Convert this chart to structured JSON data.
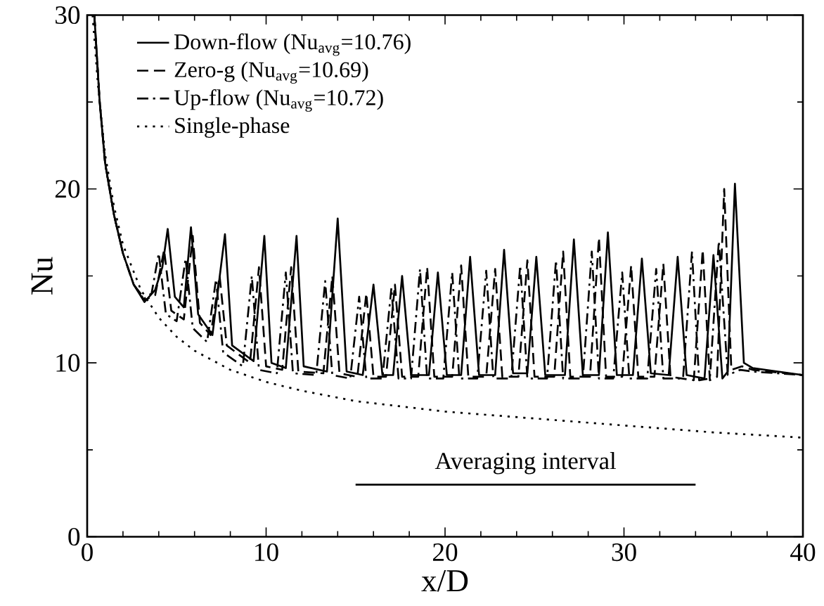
{
  "chart_data": {
    "type": "line",
    "xlabel": "x/D",
    "ylabel": "Nu",
    "xlim": [
      0,
      40
    ],
    "ylim": [
      0,
      30
    ],
    "xticks": [
      0,
      10,
      20,
      30,
      40
    ],
    "yticks": [
      0,
      10,
      20,
      30
    ],
    "legend": "top left",
    "marker": "none",
    "annotations": [
      {
        "text": "Averaging interval",
        "x": 24.5,
        "y": 3
      }
    ],
    "series": [
      {
        "name": "Down-flow  (Nu$_{avg}$=10.76)",
        "color": "#000000",
        "line_style": "solid",
        "x": [
          0.4,
          0.7,
          1,
          1.5,
          2,
          2.6,
          3.2,
          3.8,
          4.2,
          4.5,
          4.9,
          5.4,
          5.8,
          6.2,
          7.0,
          7.7,
          8.1,
          9.3,
          9.9,
          10.3,
          11.1,
          11.7,
          12.1,
          13.4,
          14.0,
          14.5,
          15.4,
          16.0,
          16.5,
          17.1,
          17.6,
          18.1,
          19.1,
          19.6,
          20.1,
          20.9,
          21.4,
          21.9,
          22.8,
          23.3,
          23.8,
          24.6,
          25.1,
          25.6,
          26.7,
          27.2,
          27.7,
          28.6,
          29.1,
          29.6,
          30.5,
          31.0,
          31.5,
          32.5,
          33.0,
          33.5,
          34.5,
          35.0,
          35.5,
          35.8,
          36.2,
          36.7,
          37.2,
          40
        ],
        "values": [
          30,
          25,
          21.5,
          18.5,
          16.3,
          14.5,
          13.5,
          14.2,
          15.5,
          17.7,
          13.8,
          13.2,
          17.8,
          12.8,
          11.6,
          17.4,
          11.0,
          10.1,
          17.3,
          10.0,
          9.7,
          17.3,
          9.8,
          9.5,
          18.3,
          9.5,
          9.3,
          14.5,
          9.3,
          9.3,
          15.0,
          9.3,
          9.3,
          15.2,
          9.3,
          9.3,
          16.1,
          9.3,
          9.3,
          16.5,
          9.4,
          9.4,
          16.1,
          9.3,
          9.3,
          17.1,
          9.3,
          9.3,
          17.5,
          9.3,
          9.3,
          16.0,
          9.4,
          9.3,
          16.1,
          9.3,
          9.1,
          16.2,
          9.1,
          9.5,
          20.3,
          10.0,
          9.7,
          9.3
        ]
      },
      {
        "name": "Zero-g       (Nu$_{avg}$=10.69)",
        "color": "#000000",
        "line_style": "dashed",
        "x": [
          0.4,
          0.7,
          1,
          1.5,
          2,
          2.6,
          3.2,
          3.8,
          4.3,
          4.7,
          5.4,
          5.9,
          6.3,
          6.9,
          7.4,
          7.8,
          9.1,
          9.6,
          10.0,
          10.9,
          11.4,
          11.8,
          13.2,
          13.7,
          14.1,
          15.1,
          15.6,
          16.0,
          16.7,
          17.2,
          17.6,
          18.5,
          19.0,
          19.4,
          20.4,
          20.9,
          21.3,
          22.3,
          22.8,
          23.2,
          24.1,
          24.6,
          25.0,
          26.1,
          26.6,
          27.0,
          28.1,
          28.6,
          29.0,
          29.9,
          30.4,
          30.8,
          31.7,
          32.2,
          32.6,
          33.9,
          34.4,
          34.8,
          35.2,
          35.6,
          36.0,
          36.6,
          37.2,
          40
        ],
        "values": [
          30,
          25,
          21.5,
          18.5,
          16.3,
          14.5,
          13.6,
          13.9,
          16.5,
          13.0,
          12.5,
          17.3,
          12.3,
          11.6,
          15.0,
          11.0,
          10.0,
          15.5,
          9.8,
          9.6,
          15.5,
          9.5,
          9.4,
          15.0,
          9.4,
          9.2,
          14.0,
          9.2,
          9.2,
          14.5,
          9.2,
          9.2,
          15.5,
          9.2,
          9.2,
          15.6,
          9.2,
          9.2,
          15.4,
          9.2,
          9.2,
          15.9,
          9.2,
          9.2,
          16.4,
          9.2,
          9.2,
          17.2,
          9.2,
          9.2,
          15.6,
          9.2,
          9.2,
          15.7,
          9.2,
          9.0,
          16.5,
          9.0,
          9.2,
          20.0,
          9.6,
          9.8,
          9.6,
          9.3
        ]
      },
      {
        "name": "Up-flow      (Nu$_{avg}$=10.72)",
        "color": "#000000",
        "line_style": "dashdot",
        "x": [
          0.4,
          0.7,
          1,
          1.5,
          2,
          2.6,
          3.2,
          3.6,
          4.0,
          4.4,
          5.0,
          5.5,
          5.9,
          6.7,
          7.2,
          7.6,
          8.7,
          9.2,
          9.6,
          10.6,
          11.1,
          11.5,
          12.8,
          13.3,
          13.7,
          14.7,
          15.2,
          15.6,
          16.5,
          17.0,
          17.4,
          18.1,
          18.6,
          19.0,
          19.9,
          20.4,
          20.8,
          21.8,
          22.3,
          22.7,
          23.7,
          24.2,
          24.6,
          25.7,
          26.2,
          26.6,
          27.7,
          28.2,
          28.6,
          29.4,
          29.9,
          30.3,
          31.3,
          31.8,
          32.2,
          33.3,
          33.8,
          34.2,
          34.8,
          35.3,
          35.8,
          36.5,
          37.2,
          40
        ],
        "values": [
          30,
          25,
          21.5,
          18.5,
          16.3,
          14.5,
          13.7,
          14.0,
          16.3,
          12.8,
          12.4,
          16.0,
          12.0,
          11.2,
          14.8,
          10.6,
          9.8,
          15.0,
          9.6,
          9.4,
          15.2,
          9.4,
          9.3,
          14.7,
          9.3,
          9.1,
          13.8,
          9.1,
          9.1,
          14.3,
          9.1,
          9.1,
          15.4,
          9.1,
          9.1,
          15.2,
          9.1,
          9.1,
          15.3,
          9.1,
          9.1,
          15.6,
          9.1,
          9.1,
          15.9,
          9.1,
          9.1,
          16.4,
          9.1,
          9.1,
          15.2,
          9.1,
          9.1,
          15.4,
          9.1,
          9.1,
          16.4,
          9.0,
          9.1,
          17.0,
          9.3,
          9.6,
          9.5,
          9.3
        ]
      },
      {
        "name": "Single-phase",
        "color": "#000000",
        "line_style": "dotted",
        "x": [
          0.3,
          0.6,
          1,
          1.5,
          2,
          3,
          4,
          5,
          6,
          8,
          10,
          12,
          15,
          20,
          25,
          30,
          35,
          40
        ],
        "values": [
          30,
          26,
          22,
          19,
          16.8,
          14.2,
          12.6,
          11.5,
          10.7,
          9.6,
          8.9,
          8.4,
          7.8,
          7.2,
          6.8,
          6.4,
          6.0,
          5.7
        ]
      },
      {
        "type": "line",
        "color": "#000000",
        "line_style": "solid",
        "x": [
          15,
          34
        ],
        "values": [
          3,
          3
        ]
      }
    ]
  }
}
